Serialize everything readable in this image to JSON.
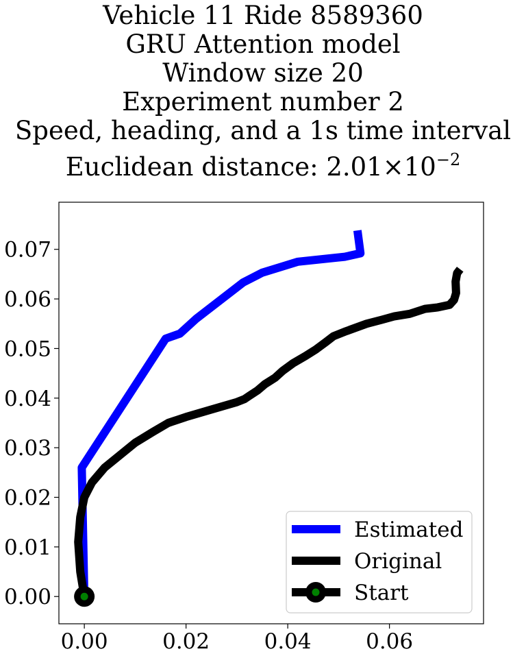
{
  "chart_data": {
    "type": "line",
    "title_lines": [
      "Vehicle 11 Ride 8589360",
      "GRU Attention model",
      "Window size 20",
      "Experiment number 2",
      "Speed, heading, and a 1s time interval"
    ],
    "title_metric": {
      "prefix": "Euclidean distance: 2.01",
      "times": "×10",
      "exponent": "−2"
    },
    "xlabel": "",
    "ylabel": "",
    "xlim": [
      -0.005,
      0.0785
    ],
    "ylim": [
      -0.0055,
      0.0795
    ],
    "xticks": [
      0.0,
      0.02,
      0.04,
      0.06
    ],
    "xtick_labels": [
      "0.00",
      "0.02",
      "0.04",
      "0.06"
    ],
    "yticks": [
      0.0,
      0.01,
      0.02,
      0.03,
      0.04,
      0.05,
      0.06,
      0.07
    ],
    "ytick_labels": [
      "0.00",
      "0.01",
      "0.02",
      "0.03",
      "0.04",
      "0.05",
      "0.06",
      "0.07"
    ],
    "grid": false,
    "legend_position": "lower right",
    "series": [
      {
        "name": "Estimated",
        "color": "#0000ff",
        "x": [
          0.0,
          -0.0005,
          0.016,
          0.0188,
          0.022,
          0.0312,
          0.035,
          0.042,
          0.0512,
          0.0543,
          0.0537
        ],
        "y": [
          0.0,
          0.026,
          0.052,
          0.053,
          0.056,
          0.0633,
          0.0653,
          0.0675,
          0.0685,
          0.0692,
          0.0738
        ]
      },
      {
        "name": "Original",
        "color": "#000000",
        "x": [
          0.0,
          -0.0008,
          -0.0012,
          -0.0008,
          0.0,
          0.0015,
          0.004,
          0.007,
          0.01,
          0.0135,
          0.0165,
          0.02,
          0.025,
          0.03,
          0.0315,
          0.0325,
          0.034,
          0.0355,
          0.0375,
          0.039,
          0.041,
          0.0435,
          0.0455,
          0.0475,
          0.049,
          0.0515,
          0.0555,
          0.0585,
          0.061,
          0.064,
          0.067,
          0.0695,
          0.0718,
          0.0727,
          0.0731,
          0.073,
          0.0733,
          0.0739
        ],
        "y": [
          0.0,
          0.005,
          0.011,
          0.016,
          0.02,
          0.023,
          0.026,
          0.0285,
          0.031,
          0.0332,
          0.035,
          0.0362,
          0.0377,
          0.0392,
          0.0398,
          0.0405,
          0.0415,
          0.0428,
          0.0441,
          0.0455,
          0.047,
          0.0485,
          0.0498,
          0.0513,
          0.0525,
          0.0535,
          0.055,
          0.0558,
          0.0565,
          0.057,
          0.058,
          0.0583,
          0.0588,
          0.0598,
          0.0612,
          0.0635,
          0.0652,
          0.066
        ]
      },
      {
        "name": "Start",
        "color": "#000000",
        "marker_face": "#008000",
        "x": [
          0.0
        ],
        "y": [
          0.0
        ]
      }
    ]
  }
}
